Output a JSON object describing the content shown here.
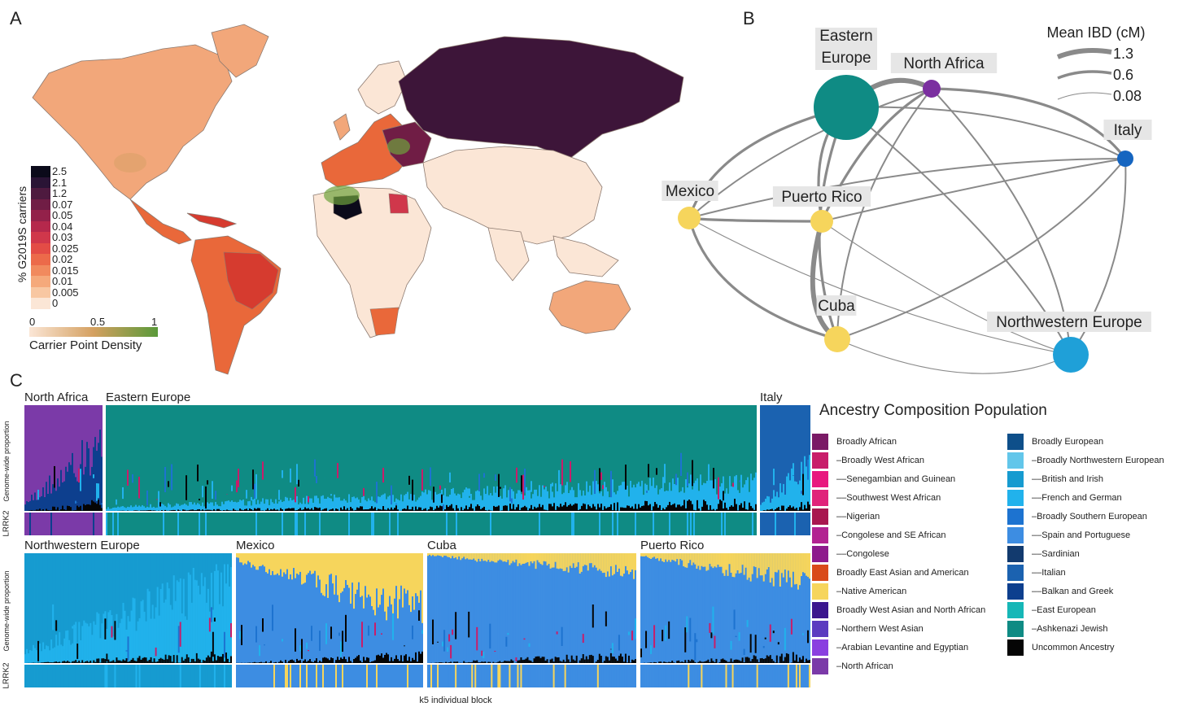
{
  "panels": {
    "a": "A",
    "b": "B",
    "c": "C"
  },
  "colors": {
    "land_light": "#fbe6d6",
    "land_mid": "#f2a77a",
    "land_orange": "#e9683a",
    "land_red": "#d63b2f",
    "land_dark": "#3d1539",
    "ocean": "#ffffff",
    "teal": "#0f8b84",
    "yellow": "#f6d55c",
    "purple": "#7b2fa0",
    "blue": "#1565c0",
    "lightblue": "#1fa0d8",
    "edge": "#8a8a8a"
  },
  "map": {
    "legend_title": "% G2019S carriers",
    "legend_ticks": [
      "2.5",
      "2.1",
      "1.2",
      "0.07",
      "0.05",
      "0.04",
      "0.03",
      "0.025",
      "0.02",
      "0.015",
      "0.01",
      "0.005",
      "0"
    ],
    "legend_colors": [
      "#0b0a1a",
      "#2a1435",
      "#4e1a3f",
      "#701d45",
      "#93214a",
      "#b5284c",
      "#d0374b",
      "#e34c46",
      "#ec6a4a",
      "#f18a5e",
      "#f5a97b",
      "#f8c7a2",
      "#fbe6d6"
    ],
    "density_title": "Carrier Point Density",
    "density_ticks": [
      "0",
      "0.5",
      "1"
    ]
  },
  "chart_data": [
    {
      "type": "network",
      "title": "",
      "legend_title": "Mean IBD (cM)",
      "legend_values": [
        "1.3",
        "0.6",
        "0.08"
      ],
      "nodes": [
        {
          "name": "Eastern Europe",
          "color": "#0f8b84"
        },
        {
          "name": "North Africa",
          "color": "#7b2fa0"
        },
        {
          "name": "Italy",
          "color": "#1565c0"
        },
        {
          "name": "Mexico",
          "color": "#f6d55c"
        },
        {
          "name": "Puerto Rico",
          "color": "#f6d55c"
        },
        {
          "name": "Cuba",
          "color": "#f6d55c"
        },
        {
          "name": "Northwestern Europe",
          "color": "#1fa0d8"
        }
      ],
      "edges": [
        {
          "source": "Eastern Europe",
          "target": "North Africa",
          "ibd": 1.3
        },
        {
          "source": "Puerto Rico",
          "target": "Cuba",
          "ibd": 1.3
        },
        {
          "source": "Eastern Europe",
          "target": "Mexico",
          "ibd": 0.6
        },
        {
          "source": "Eastern Europe",
          "target": "Puerto Rico",
          "ibd": 0.6
        },
        {
          "source": "Eastern Europe",
          "target": "Cuba",
          "ibd": 0.6
        },
        {
          "source": "North Africa",
          "target": "Italy",
          "ibd": 0.6
        },
        {
          "source": "North Africa",
          "target": "Puerto Rico",
          "ibd": 0.6
        },
        {
          "source": "Mexico",
          "target": "Puerto Rico",
          "ibd": 0.6
        },
        {
          "source": "Mexico",
          "target": "Cuba",
          "ibd": 0.6
        },
        {
          "source": "Italy",
          "target": "Northwestern Europe",
          "ibd": 0.3
        },
        {
          "source": "Eastern Europe",
          "target": "Italy",
          "ibd": 0.3
        },
        {
          "source": "Eastern Europe",
          "target": "Northwestern Europe",
          "ibd": 0.3
        },
        {
          "source": "North Africa",
          "target": "Mexico",
          "ibd": 0.3
        },
        {
          "source": "North Africa",
          "target": "Cuba",
          "ibd": 0.3
        },
        {
          "source": "North Africa",
          "target": "Northwestern Europe",
          "ibd": 0.3
        },
        {
          "source": "Italy",
          "target": "Mexico",
          "ibd": 0.3
        },
        {
          "source": "Italy",
          "target": "Puerto Rico",
          "ibd": 0.3
        },
        {
          "source": "Italy",
          "target": "Cuba",
          "ibd": 0.3
        },
        {
          "source": "Mexico",
          "target": "Northwestern Europe",
          "ibd": 0.08
        },
        {
          "source": "Puerto Rico",
          "target": "Northwestern Europe",
          "ibd": 0.08
        },
        {
          "source": "Cuba",
          "target": "Northwestern Europe",
          "ibd": 0.08
        }
      ]
    },
    {
      "type": "bar",
      "title": "",
      "ylabel": "Genome-wide proportion",
      "lower_track_label": "LRRK2",
      "xlabel": "k5 individual block",
      "legend_title": "Ancestry Composition Population",
      "ancestries": [
        {
          "name": "Broadly African",
          "color": "#7a1a66"
        },
        {
          "name": "–Broadly West African",
          "color": "#c81d6a"
        },
        {
          "name": "––Senegambian and Guinean",
          "color": "#e8197f"
        },
        {
          "name": "––Southwest West African",
          "color": "#e0237a"
        },
        {
          "name": "––Nigerian",
          "color": "#a8174f"
        },
        {
          "name": "–Congolese and SE African",
          "color": "#b22391"
        },
        {
          "name": "––Congolese",
          "color": "#8e1b8c"
        },
        {
          "name": "Broadly East Asian and American",
          "color": "#d94a1a"
        },
        {
          "name": "–Native American",
          "color": "#f6d55c"
        },
        {
          "name": "Broadly West Asian and North African",
          "color": "#3b168e"
        },
        {
          "name": "–Northern West Asian",
          "color": "#5b3bc0"
        },
        {
          "name": "–Arabian Levantine and Egyptian",
          "color": "#8a3fe0"
        },
        {
          "name": "–North African",
          "color": "#7b3aa8"
        },
        {
          "name": "Broadly European",
          "color": "#0e4f8a"
        },
        {
          "name": "–Broadly Northwestern European",
          "color": "#62c6ea"
        },
        {
          "name": "––British and Irish",
          "color": "#169bd0"
        },
        {
          "name": "––French and German",
          "color": "#21b2ec"
        },
        {
          "name": "–Broadly Southern European",
          "color": "#1d73d0"
        },
        {
          "name": "––Spain and Portuguese",
          "color": "#3d8de2"
        },
        {
          "name": "––Sardinian",
          "color": "#123a6e"
        },
        {
          "name": "––Italian",
          "color": "#1b62b0"
        },
        {
          "name": "––Balkan and Greek",
          "color": "#0d3f8e"
        },
        {
          "name": "–East European",
          "color": "#16b7b7"
        },
        {
          "name": "–Ashkenazi Jewish",
          "color": "#0f8b84"
        },
        {
          "name": "Uncommon Ancestry",
          "color": "#050505"
        }
      ],
      "populations": [
        {
          "name": "North Africa",
          "main": "–North African",
          "secondary": "––Balkan and Greek",
          "secondary_share": 0.35
        },
        {
          "name": "Eastern Europe",
          "main": "–Ashkenazi Jewish",
          "secondary": "––French and German",
          "secondary_share": 0.15
        },
        {
          "name": "Italy",
          "main": "––Italian",
          "secondary": "––French and German",
          "secondary_share": 0.25
        },
        {
          "name": "Northwestern Europe",
          "main": "––British and Irish",
          "secondary": "––French and German",
          "secondary_share": 0.45
        },
        {
          "name": "Mexico",
          "main": "––Spain and Portuguese",
          "secondary": "–Native American",
          "secondary_share": 0.3
        },
        {
          "name": "Cuba",
          "main": "––Spain and Portuguese",
          "secondary": "–Native American",
          "secondary_share": 0.1
        },
        {
          "name": "Puerto Rico",
          "main": "––Spain and Portuguese",
          "secondary": "–Native American",
          "secondary_share": 0.15
        }
      ]
    }
  ]
}
